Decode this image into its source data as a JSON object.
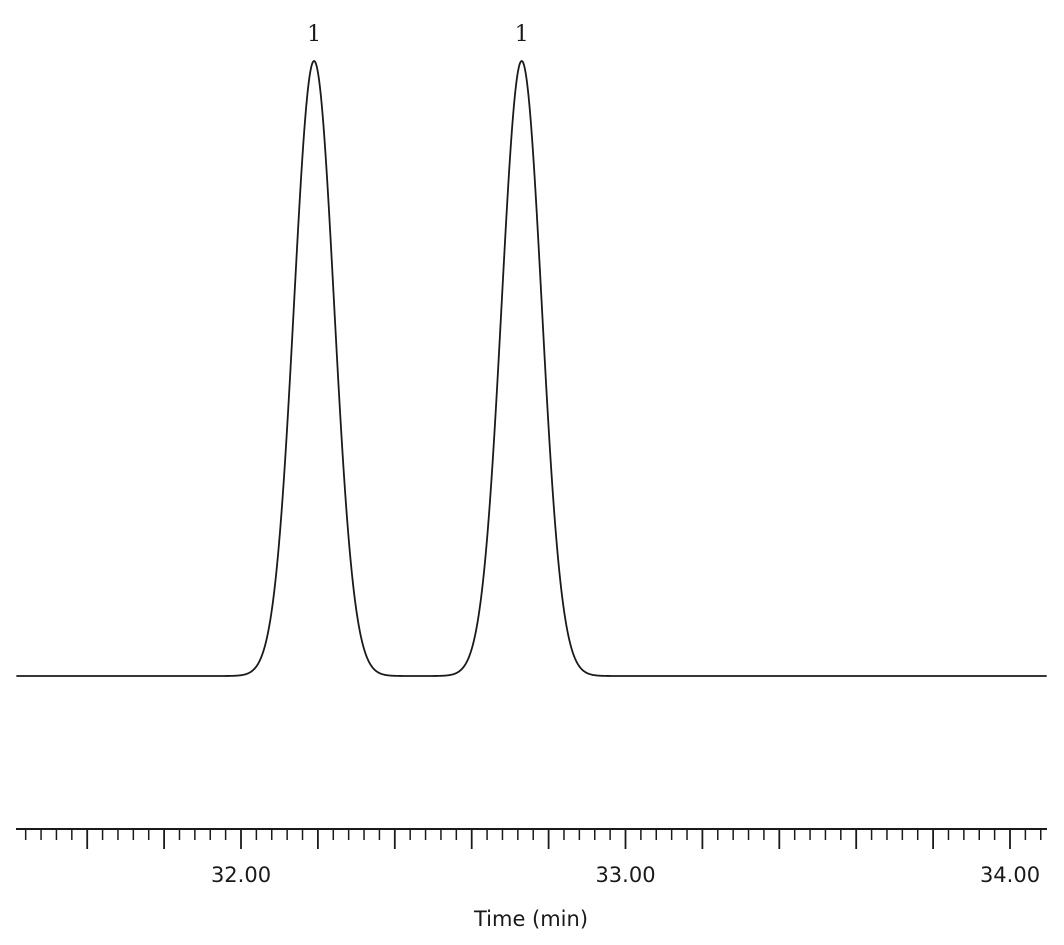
{
  "chart_data": {
    "type": "line",
    "title": "",
    "xlabel": "Time (min)",
    "ylabel": "",
    "xlim": [
      31.4,
      34.1
    ],
    "ylim": [
      0,
      1.0
    ],
    "grid": false,
    "x_ticks": {
      "labeled": [
        {
          "value": 32.0,
          "label": "32.00"
        },
        {
          "value": 33.0,
          "label": "33.00"
        },
        {
          "value": 34.0,
          "label": "34.00"
        }
      ],
      "major_step": 0.2,
      "minor_step": 0.04
    },
    "peaks": [
      {
        "label": "1",
        "retention_time": 32.19,
        "height": 1.0,
        "sigma": 0.052
      },
      {
        "label": "1",
        "retention_time": 32.73,
        "height": 1.0,
        "sigma": 0.052
      }
    ],
    "baseline": 0.0,
    "series": [
      {
        "color": "#1a1a1a"
      }
    ]
  }
}
